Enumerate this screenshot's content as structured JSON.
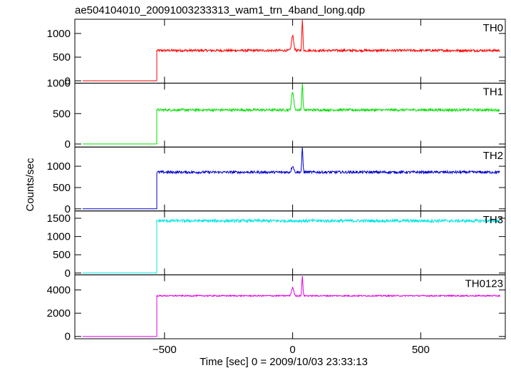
{
  "chart_data": {
    "type": "line",
    "title": "ae504104010_20091003233313_wam1_trn_4band_long.qdp",
    "xlabel": "Time [sec] 0 = 2009/10/03 23:33:13",
    "ylabel": "Counts/sec",
    "xlim": [
      -850,
      830
    ],
    "xticks": [
      -500,
      0,
      500
    ],
    "xticklabels": [
      "−500",
      "0",
      "500"
    ],
    "grid": false,
    "panels": [
      {
        "name": "TH0",
        "color": "#ff0000",
        "ylim": [
          -50,
          1300
        ],
        "yticks": [
          0,
          500,
          1000
        ],
        "yticklabels": [
          "0",
          "500",
          "1000"
        ],
        "pre_level": 0,
        "level": 640,
        "noise": 25,
        "start": -820,
        "onset": -530,
        "end": 810,
        "peaks": [
          {
            "x": 0,
            "value": 950,
            "width": 6
          },
          {
            "x": 38,
            "value": 1270,
            "width": 3
          }
        ]
      },
      {
        "name": "TH1",
        "color": "#00e000",
        "ylim": [
          -50,
          1000
        ],
        "yticks": [
          0,
          500,
          1000
        ],
        "yticklabels": [
          "0",
          "500",
          "1000"
        ],
        "pre_level": 0,
        "level": 560,
        "noise": 20,
        "start": -820,
        "onset": -530,
        "end": 810,
        "peaks": [
          {
            "x": 0,
            "value": 860,
            "width": 6
          },
          {
            "x": 38,
            "value": 1000,
            "width": 3
          }
        ]
      },
      {
        "name": "TH2",
        "color": "#0000cc",
        "ylim": [
          -50,
          1450
        ],
        "yticks": [
          0,
          500,
          1000
        ],
        "yticklabels": [
          "0",
          "500",
          "1000"
        ],
        "pre_level": 0,
        "level": 860,
        "noise": 30,
        "start": -820,
        "onset": -530,
        "end": 810,
        "peaks": [
          {
            "x": 0,
            "value": 1010,
            "width": 6
          },
          {
            "x": 38,
            "value": 1430,
            "width": 3
          }
        ]
      },
      {
        "name": "TH3",
        "color": "#00e5e5",
        "ylim": [
          -50,
          1700
        ],
        "yticks": [
          0,
          500,
          1000,
          1500
        ],
        "yticklabels": [
          "0",
          "500",
          "1000",
          "1500"
        ],
        "pre_level": 0,
        "level": 1430,
        "noise": 40,
        "start": -820,
        "onset": -530,
        "end": 810,
        "peaks": []
      },
      {
        "name": "TH0123",
        "color": "#e000e0",
        "ylim": [
          -200,
          5300
        ],
        "yticks": [
          0,
          2000,
          4000
        ],
        "yticklabels": [
          "0",
          "2000",
          "4000"
        ],
        "pre_level": 0,
        "level": 3500,
        "noise": 55,
        "start": -820,
        "onset": -530,
        "end": 810,
        "peaks": [
          {
            "x": 0,
            "value": 4200,
            "width": 6
          },
          {
            "x": 38,
            "value": 5150,
            "width": 3
          }
        ]
      }
    ]
  }
}
